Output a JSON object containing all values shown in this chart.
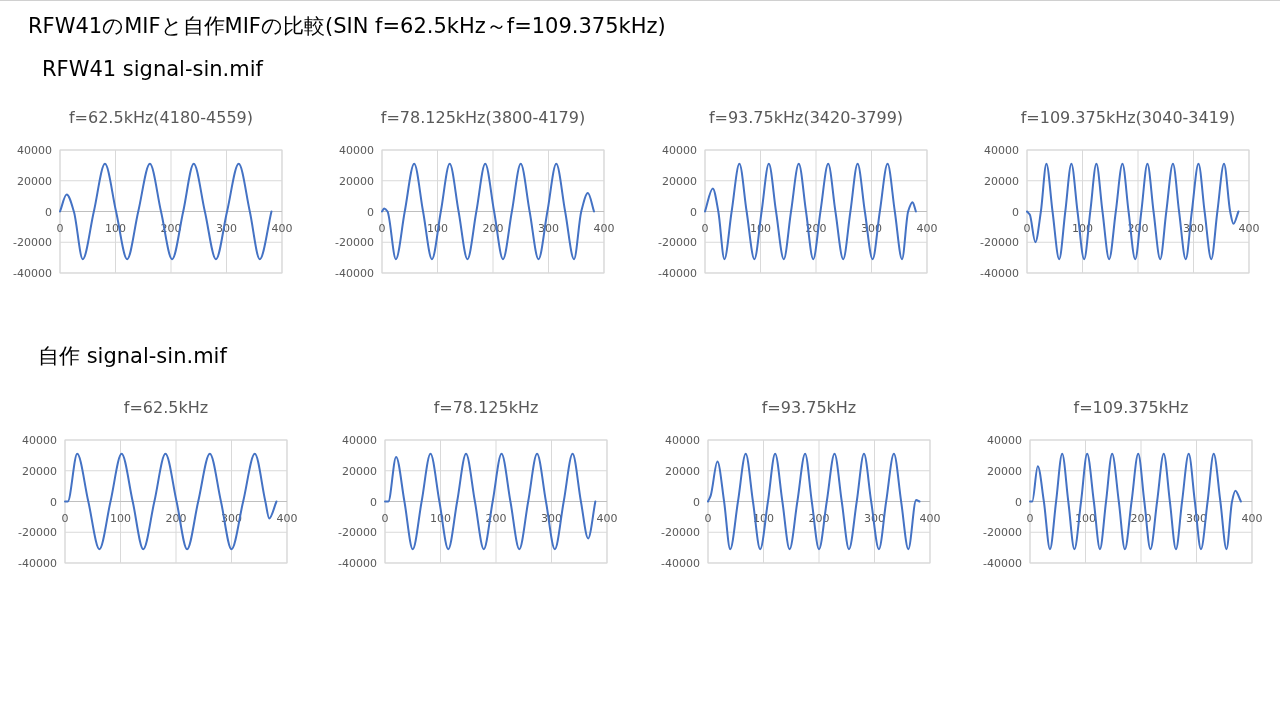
{
  "chart_data": [
    {
      "type": "line",
      "title": "f=62.5kHz(4180-4559)",
      "annotations": [
        "RFW41のMIFと自作MIFの比較(SIN f=62.5kHz～f=109.375kHz)",
        "RFW41 signal-sin.mif"
      ],
      "xlim": [
        0,
        400
      ],
      "ylim": [
        -40000,
        40000
      ],
      "xticks": [
        0,
        100,
        200,
        300,
        400
      ],
      "yticks": [
        -40000,
        -20000,
        0,
        20000,
        40000
      ],
      "grid": true,
      "series": [
        {
          "color": "#4472c4",
          "x": [
            0,
            12,
            25,
            41,
            61,
            81,
            101,
            121,
            141,
            162,
            182,
            202,
            222,
            241,
            261,
            281,
            301,
            322,
            342,
            360,
            381
          ],
          "values": [
            0,
            11000,
            0,
            -31000,
            0,
            31000,
            0,
            -31000,
            0,
            31000,
            0,
            -31000,
            0,
            31000,
            0,
            -31000,
            0,
            31000,
            0,
            -31000,
            0
          ]
        }
      ]
    },
    {
      "type": "line",
      "title": "f=78.125kHz(3800-4179)",
      "xlim": [
        0,
        400
      ],
      "ylim": [
        -40000,
        40000
      ],
      "xticks": [
        0,
        100,
        200,
        300,
        400
      ],
      "yticks": [
        -40000,
        -20000,
        0,
        20000,
        40000
      ],
      "grid": true,
      "series": [
        {
          "color": "#4472c4",
          "x": [
            0,
            4,
            10,
            25,
            41,
            58,
            74,
            90,
            106,
            122,
            138,
            154,
            170,
            186,
            202,
            218,
            234,
            250,
            266,
            282,
            298,
            314,
            330,
            346,
            359,
            371,
            382
          ],
          "values": [
            0,
            2000,
            0,
            -31000,
            0,
            31000,
            0,
            -31000,
            0,
            31000,
            0,
            -31000,
            0,
            31000,
            0,
            -31000,
            0,
            31000,
            0,
            -31000,
            0,
            31000,
            0,
            -31000,
            0,
            12000,
            0
          ]
        }
      ]
    },
    {
      "type": "line",
      "title": "f=93.75kHz(3420-3799)",
      "xlim": [
        0,
        400
      ],
      "ylim": [
        -40000,
        40000
      ],
      "xticks": [
        0,
        100,
        200,
        300,
        400
      ],
      "yticks": [
        -40000,
        -20000,
        0,
        20000,
        40000
      ],
      "grid": true,
      "series": [
        {
          "color": "#4472c4",
          "x": [
            0,
            14,
            24,
            35,
            48,
            62,
            75,
            89,
            102,
            115,
            128,
            142,
            155,
            169,
            182,
            195,
            208,
            222,
            235,
            249,
            262,
            275,
            288,
            302,
            315,
            329,
            342,
            355,
            366,
            374,
            380
          ],
          "values": [
            0,
            15000,
            0,
            -31000,
            0,
            31000,
            0,
            -31000,
            0,
            31000,
            0,
            -31000,
            0,
            31000,
            0,
            -31000,
            0,
            31000,
            0,
            -31000,
            0,
            31000,
            0,
            -31000,
            0,
            31000,
            0,
            -31000,
            0,
            6000,
            0
          ]
        }
      ]
    },
    {
      "type": "line",
      "title": "f=109.375kHz(3040-3419)",
      "xlim": [
        0,
        400
      ],
      "ylim": [
        -40000,
        40000
      ],
      "xticks": [
        0,
        100,
        200,
        300,
        400
      ],
      "yticks": [
        -40000,
        -20000,
        0,
        20000,
        40000
      ],
      "grid": true,
      "series": [
        {
          "color": "#4472c4",
          "x": [
            0,
            5,
            15,
            25,
            35,
            46,
            58,
            69,
            80,
            91,
            103,
            114,
            125,
            136,
            148,
            160,
            172,
            183,
            195,
            206,
            217,
            228,
            240,
            251,
            263,
            274,
            286,
            297,
            309,
            320,
            332,
            343,
            355,
            366,
            372,
            381
          ],
          "values": [
            0,
            -2000,
            -20000,
            0,
            31000,
            0,
            -31000,
            0,
            31000,
            0,
            -31000,
            0,
            31000,
            0,
            -31000,
            0,
            31000,
            0,
            -31000,
            0,
            31000,
            0,
            -31000,
            0,
            31000,
            0,
            -31000,
            0,
            31000,
            0,
            -31000,
            0,
            31000,
            0,
            -8000,
            0
          ]
        }
      ]
    },
    {
      "type": "line",
      "title": "f=62.5kHz",
      "annotations": [
        "自作 signal-sin.mif"
      ],
      "xlim": [
        0,
        400
      ],
      "ylim": [
        -40000,
        40000
      ],
      "xticks": [
        0,
        100,
        200,
        300,
        400
      ],
      "yticks": [
        -40000,
        -20000,
        0,
        20000,
        40000
      ],
      "grid": true,
      "series": [
        {
          "color": "#4472c4",
          "x": [
            0,
            5,
            22,
            42,
            62,
            82,
            102,
            122,
            141,
            161,
            181,
            201,
            220,
            240,
            261,
            281,
            300,
            321,
            342,
            361,
            368,
            381
          ],
          "values": [
            0,
            0,
            31000,
            0,
            -31000,
            0,
            31000,
            0,
            -31000,
            0,
            31000,
            0,
            -31000,
            0,
            31000,
            0,
            -31000,
            0,
            31000,
            0,
            -11000,
            0
          ]
        }
      ]
    },
    {
      "type": "line",
      "title": "f=78.125kHz",
      "xlim": [
        0,
        400
      ],
      "ylim": [
        -40000,
        40000
      ],
      "xticks": [
        0,
        100,
        200,
        300,
        400
      ],
      "yticks": [
        -40000,
        -20000,
        0,
        20000,
        40000
      ],
      "grid": true,
      "series": [
        {
          "color": "#4472c4",
          "x": [
            0,
            6,
            20,
            35,
            50,
            66,
            82,
            98,
            114,
            130,
            146,
            162,
            178,
            194,
            210,
            226,
            242,
            258,
            274,
            290,
            306,
            322,
            338,
            353,
            366,
            379
          ],
          "values": [
            0,
            0,
            29000,
            0,
            -31000,
            0,
            31000,
            0,
            -31000,
            0,
            31000,
            0,
            -31000,
            0,
            31000,
            0,
            -31000,
            0,
            31000,
            0,
            -31000,
            0,
            31000,
            0,
            -24000,
            0
          ]
        }
      ]
    },
    {
      "type": "line",
      "title": "f=93.75kHz",
      "xlim": [
        0,
        400
      ],
      "ylim": [
        -40000,
        40000
      ],
      "xticks": [
        0,
        100,
        200,
        300,
        400
      ],
      "yticks": [
        -40000,
        -20000,
        0,
        20000,
        40000
      ],
      "grid": true,
      "series": [
        {
          "color": "#4472c4",
          "x": [
            0,
            5,
            17,
            29,
            40,
            54,
            68,
            81,
            94,
            108,
            121,
            134,
            147,
            161,
            175,
            187,
            200,
            214,
            228,
            241,
            254,
            268,
            281,
            294,
            308,
            321,
            335,
            348,
            361,
            375,
            381
          ],
          "values": [
            0,
            4000,
            26000,
            0,
            -31000,
            0,
            31000,
            0,
            -31000,
            0,
            31000,
            0,
            -31000,
            0,
            31000,
            0,
            -31000,
            0,
            31000,
            0,
            -31000,
            0,
            31000,
            0,
            -31000,
            0,
            31000,
            0,
            -31000,
            1000,
            0
          ]
        }
      ]
    },
    {
      "type": "line",
      "title": "f=109.375kHz",
      "xlim": [
        0,
        400
      ],
      "ylim": [
        -40000,
        40000
      ],
      "xticks": [
        0,
        100,
        200,
        300,
        400
      ],
      "yticks": [
        -40000,
        -20000,
        0,
        20000,
        40000
      ],
      "grid": true,
      "series": [
        {
          "color": "#4472c4",
          "x": [
            0,
            4,
            14,
            25,
            36,
            47,
            58,
            69,
            80,
            92,
            103,
            115,
            126,
            137,
            148,
            160,
            171,
            183,
            195,
            206,
            217,
            229,
            241,
            252,
            263,
            274,
            286,
            297,
            308,
            320,
            331,
            343,
            354,
            364,
            370,
            380
          ],
          "values": [
            0,
            0,
            23000,
            0,
            -31000,
            0,
            31000,
            0,
            -31000,
            0,
            31000,
            0,
            -31000,
            0,
            31000,
            0,
            -31000,
            0,
            31000,
            0,
            -31000,
            0,
            31000,
            0,
            -31000,
            0,
            31000,
            0,
            -31000,
            0,
            31000,
            0,
            -31000,
            0,
            7000,
            0
          ]
        }
      ]
    }
  ]
}
